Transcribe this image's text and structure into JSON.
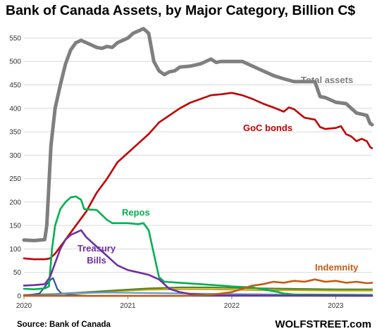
{
  "title": "Bank of Canada Assets, by Major Category, Billion C$",
  "source": "Source: Bank of Canada",
  "brand": "WOLFSTREET.com",
  "chart_data": {
    "type": "line",
    "title": "Bank of Canada Assets, by Major Category, Billion C$",
    "xlabel": "",
    "ylabel": "",
    "x_ticks": [
      "2020",
      "2021",
      "2022",
      "2023"
    ],
    "x_range": [
      2020.0,
      2023.35
    ],
    "y_ticks": [
      0,
      50,
      100,
      150,
      200,
      250,
      300,
      350,
      400,
      450,
      500,
      550
    ],
    "ylim": [
      0,
      580
    ],
    "grid": "horizontal",
    "legend": "inline labels",
    "series": [
      {
        "name": "Total assets",
        "label": "Total assets",
        "color": "#7f7f7f",
        "points": [
          [
            2020.0,
            119
          ],
          [
            2020.1,
            118
          ],
          [
            2020.2,
            120
          ],
          [
            2020.22,
            150
          ],
          [
            2020.26,
            320
          ],
          [
            2020.3,
            400
          ],
          [
            2020.35,
            450
          ],
          [
            2020.4,
            495
          ],
          [
            2020.45,
            525
          ],
          [
            2020.5,
            540
          ],
          [
            2020.55,
            545
          ],
          [
            2020.6,
            540
          ],
          [
            2020.65,
            535
          ],
          [
            2020.7,
            530
          ],
          [
            2020.75,
            528
          ],
          [
            2020.8,
            532
          ],
          [
            2020.85,
            530
          ],
          [
            2020.9,
            540
          ],
          [
            2020.95,
            545
          ],
          [
            2021.0,
            550
          ],
          [
            2021.05,
            560
          ],
          [
            2021.1,
            565
          ],
          [
            2021.15,
            570
          ],
          [
            2021.2,
            560
          ],
          [
            2021.25,
            500
          ],
          [
            2021.3,
            480
          ],
          [
            2021.35,
            472
          ],
          [
            2021.4,
            478
          ],
          [
            2021.45,
            480
          ],
          [
            2021.5,
            488
          ],
          [
            2021.6,
            490
          ],
          [
            2021.7,
            495
          ],
          [
            2021.8,
            505
          ],
          [
            2021.85,
            498
          ],
          [
            2021.9,
            500
          ],
          [
            2022.0,
            500
          ],
          [
            2022.1,
            500
          ],
          [
            2022.2,
            490
          ],
          [
            2022.3,
            480
          ],
          [
            2022.4,
            470
          ],
          [
            2022.5,
            463
          ],
          [
            2022.6,
            457
          ],
          [
            2022.8,
            457
          ],
          [
            2022.85,
            425
          ],
          [
            2022.9,
            423
          ],
          [
            2023.0,
            413
          ],
          [
            2023.1,
            410
          ],
          [
            2023.2,
            390
          ],
          [
            2023.3,
            385
          ],
          [
            2023.33,
            368
          ],
          [
            2023.35,
            365
          ]
        ]
      },
      {
        "name": "GoC bonds",
        "label": "GoC bonds",
        "color": "#c00000",
        "points": [
          [
            2020.0,
            80
          ],
          [
            2020.1,
            78
          ],
          [
            2020.2,
            78
          ],
          [
            2020.25,
            80
          ],
          [
            2020.3,
            90
          ],
          [
            2020.4,
            120
          ],
          [
            2020.5,
            150
          ],
          [
            2020.6,
            180
          ],
          [
            2020.7,
            220
          ],
          [
            2020.8,
            250
          ],
          [
            2020.9,
            285
          ],
          [
            2021.0,
            305
          ],
          [
            2021.1,
            325
          ],
          [
            2021.2,
            345
          ],
          [
            2021.3,
            370
          ],
          [
            2021.4,
            385
          ],
          [
            2021.5,
            400
          ],
          [
            2021.6,
            412
          ],
          [
            2021.7,
            420
          ],
          [
            2021.8,
            428
          ],
          [
            2021.9,
            430
          ],
          [
            2022.0,
            433
          ],
          [
            2022.1,
            428
          ],
          [
            2022.2,
            420
          ],
          [
            2022.3,
            410
          ],
          [
            2022.4,
            402
          ],
          [
            2022.5,
            393
          ],
          [
            2022.55,
            402
          ],
          [
            2022.6,
            398
          ],
          [
            2022.7,
            380
          ],
          [
            2022.8,
            376
          ],
          [
            2022.85,
            360
          ],
          [
            2022.9,
            356
          ],
          [
            2023.0,
            358
          ],
          [
            2023.05,
            362
          ],
          [
            2023.1,
            345
          ],
          [
            2023.15,
            340
          ],
          [
            2023.2,
            330
          ],
          [
            2023.25,
            335
          ],
          [
            2023.3,
            330
          ],
          [
            2023.33,
            318
          ],
          [
            2023.35,
            315
          ]
        ]
      },
      {
        "name": "Repos",
        "label": "Repos",
        "color": "#00b050",
        "points": [
          [
            2020.0,
            15
          ],
          [
            2020.1,
            14
          ],
          [
            2020.2,
            16
          ],
          [
            2020.24,
            20
          ],
          [
            2020.27,
            100
          ],
          [
            2020.3,
            150
          ],
          [
            2020.35,
            185
          ],
          [
            2020.4,
            200
          ],
          [
            2020.45,
            210
          ],
          [
            2020.5,
            212
          ],
          [
            2020.55,
            205
          ],
          [
            2020.58,
            185
          ],
          [
            2020.7,
            183
          ],
          [
            2020.8,
            162
          ],
          [
            2020.85,
            155
          ],
          [
            2021.0,
            155
          ],
          [
            2021.1,
            153
          ],
          [
            2021.15,
            155
          ],
          [
            2021.2,
            140
          ],
          [
            2021.25,
            90
          ],
          [
            2021.3,
            40
          ],
          [
            2021.35,
            30
          ],
          [
            2021.5,
            28
          ],
          [
            2021.7,
            25
          ],
          [
            2021.9,
            22
          ],
          [
            2022.0,
            20
          ],
          [
            2022.2,
            18
          ],
          [
            2022.35,
            12
          ],
          [
            2022.45,
            8
          ],
          [
            2022.5,
            5
          ],
          [
            2022.6,
            3
          ],
          [
            2023.35,
            2
          ]
        ]
      },
      {
        "name": "Treasury Bills",
        "label": "Treasury Bills",
        "color": "#7030a0",
        "points": [
          [
            2020.0,
            22
          ],
          [
            2020.1,
            23
          ],
          [
            2020.2,
            25
          ],
          [
            2020.25,
            40
          ],
          [
            2020.3,
            70
          ],
          [
            2020.35,
            100
          ],
          [
            2020.4,
            120
          ],
          [
            2020.45,
            130
          ],
          [
            2020.5,
            135
          ],
          [
            2020.55,
            140
          ],
          [
            2020.6,
            125
          ],
          [
            2020.7,
            105
          ],
          [
            2020.8,
            85
          ],
          [
            2020.85,
            75
          ],
          [
            2020.9,
            65
          ],
          [
            2021.0,
            55
          ],
          [
            2021.1,
            50
          ],
          [
            2021.2,
            45
          ],
          [
            2021.25,
            40
          ],
          [
            2021.3,
            35
          ],
          [
            2021.35,
            25
          ],
          [
            2021.4,
            15
          ],
          [
            2021.5,
            8
          ],
          [
            2021.6,
            4
          ],
          [
            2021.8,
            1
          ],
          [
            2023.35,
            0
          ]
        ]
      },
      {
        "name": "Indemnity",
        "label": "Indemnity",
        "color": "#c55a11",
        "points": [
          [
            2020.0,
            0
          ],
          [
            2021.5,
            0
          ],
          [
            2021.8,
            2
          ],
          [
            2022.0,
            8
          ],
          [
            2022.1,
            15
          ],
          [
            2022.2,
            22
          ],
          [
            2022.3,
            25
          ],
          [
            2022.4,
            30
          ],
          [
            2022.5,
            28
          ],
          [
            2022.6,
            32
          ],
          [
            2022.7,
            30
          ],
          [
            2022.8,
            35
          ],
          [
            2022.9,
            30
          ],
          [
            2023.0,
            32
          ],
          [
            2023.1,
            28
          ],
          [
            2023.2,
            30
          ],
          [
            2023.3,
            27
          ],
          [
            2023.35,
            28
          ]
        ]
      },
      {
        "color": "#c9a800",
        "points": [
          [
            2020.0,
            1
          ],
          [
            2020.3,
            3
          ],
          [
            2020.6,
            6
          ],
          [
            2020.9,
            10
          ],
          [
            2021.2,
            13
          ],
          [
            2021.5,
            14
          ],
          [
            2021.8,
            14
          ],
          [
            2022.0,
            13
          ],
          [
            2022.3,
            12
          ],
          [
            2022.6,
            12
          ],
          [
            2023.0,
            11
          ],
          [
            2023.35,
            11
          ]
        ]
      },
      {
        "color": "#548235",
        "points": [
          [
            2020.0,
            2
          ],
          [
            2020.3,
            4
          ],
          [
            2020.6,
            8
          ],
          [
            2020.9,
            12
          ],
          [
            2021.2,
            16
          ],
          [
            2021.5,
            18
          ],
          [
            2021.8,
            18
          ],
          [
            2022.0,
            17
          ],
          [
            2022.3,
            16
          ],
          [
            2022.6,
            15
          ],
          [
            2023.0,
            14
          ],
          [
            2023.35,
            14
          ]
        ]
      },
      {
        "color": "#2f5597",
        "points": [
          [
            2020.0,
            0
          ],
          [
            2020.15,
            5
          ],
          [
            2020.22,
            25
          ],
          [
            2020.26,
            35
          ],
          [
            2020.28,
            38
          ],
          [
            2020.32,
            15
          ],
          [
            2020.36,
            5
          ],
          [
            2020.45,
            2
          ],
          [
            2020.6,
            0
          ],
          [
            2023.35,
            0
          ]
        ]
      },
      {
        "color": "#5b9bd5",
        "points": [
          [
            2020.0,
            0
          ],
          [
            2020.3,
            3
          ],
          [
            2020.5,
            6
          ],
          [
            2020.8,
            7
          ],
          [
            2021.2,
            6
          ],
          [
            2021.6,
            5
          ],
          [
            2022.0,
            4
          ],
          [
            2022.5,
            3
          ],
          [
            2023.35,
            2
          ]
        ]
      }
    ]
  }
}
